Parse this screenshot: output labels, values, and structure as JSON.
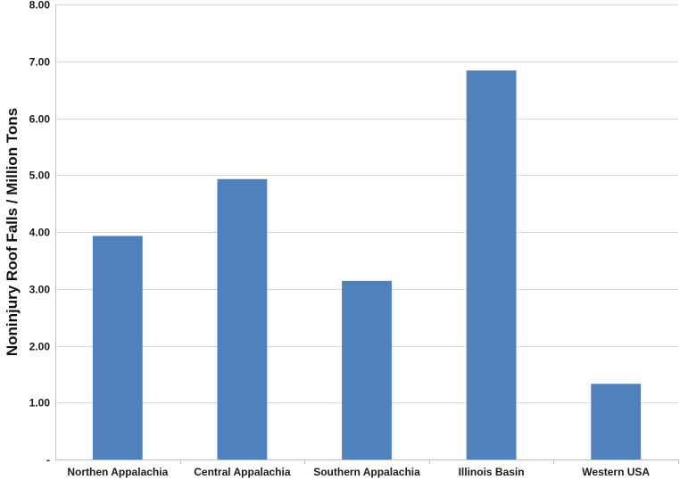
{
  "chart_data": {
    "type": "bar",
    "categories": [
      "Northen Appalachia",
      "Central Appalachia",
      "Southern Appalachia",
      "Illinois Basin",
      "Western USA"
    ],
    "values": [
      3.93,
      4.93,
      3.14,
      6.84,
      1.33
    ],
    "ylabel": "Noninjury Roof Falls / Million Tons",
    "ylim": [
      0,
      8
    ],
    "yticks": [
      0,
      1,
      2,
      3,
      4,
      5,
      6,
      7,
      8
    ],
    "ytick_labels": [
      "-",
      "1.00",
      "2.00",
      "3.00",
      "4.00",
      "5.00",
      "6.00",
      "7.00",
      "8.00"
    ],
    "grid": true,
    "bar_color": "#4f81bd"
  }
}
